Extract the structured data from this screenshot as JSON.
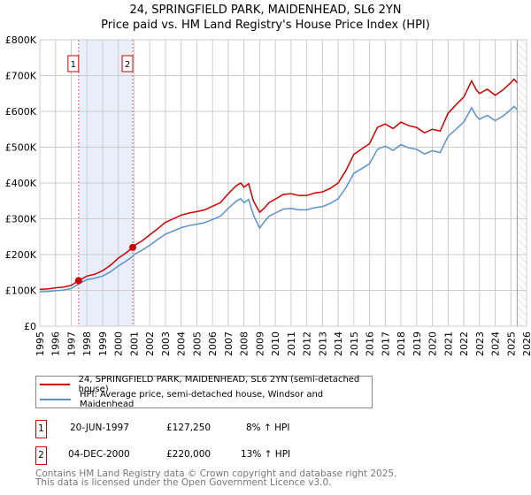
{
  "chart_data": {
    "type": "line",
    "title": "24, SPRINGFIELD PARK, MAIDENHEAD, SL6 2YN",
    "subtitle": "Price paid vs. HM Land Registry's House Price Index (HPI)",
    "xlim": [
      1995,
      2026
    ],
    "ylim": [
      0,
      800000
    ],
    "x_ticks": [
      "1995",
      "1996",
      "1997",
      "1998",
      "1999",
      "2000",
      "2001",
      "2002",
      "2003",
      "2004",
      "2005",
      "2006",
      "2007",
      "2008",
      "2009",
      "2010",
      "2011",
      "2012",
      "2013",
      "2014",
      "2015",
      "2016",
      "2017",
      "2018",
      "2019",
      "2020",
      "2021",
      "2022",
      "2023",
      "2024",
      "2025",
      "2026"
    ],
    "y_ticks": [
      {
        "v": 0,
        "label": "£0"
      },
      {
        "v": 100000,
        "label": "£100K"
      },
      {
        "v": 200000,
        "label": "£200K"
      },
      {
        "v": 300000,
        "label": "£300K"
      },
      {
        "v": 400000,
        "label": "£400K"
      },
      {
        "v": 500000,
        "label": "£500K"
      },
      {
        "v": 600000,
        "label": "£600K"
      },
      {
        "v": 700000,
        "label": "£700K"
      },
      {
        "v": 800000,
        "label": "£800K"
      }
    ],
    "grid": true,
    "shaded_range": [
      1997.47,
      2000.92
    ],
    "forecast_hatch_from": 2025.4,
    "series": [
      {
        "name": "24, SPRINGFIELD PARK, MAIDENHEAD, SL6 2YN (semi-detached house)",
        "color": "#cc0000",
        "x": [
          1995,
          1995.5,
          1996,
          1996.5,
          1997,
          1997.47,
          1998,
          1998.5,
          1999,
          1999.5,
          2000,
          2000.5,
          2000.92,
          2001,
          2001.5,
          2002,
          2002.5,
          2003,
          2003.5,
          2004,
          2004.5,
          2005,
          2005.5,
          2006,
          2006.5,
          2007,
          2007.5,
          2007.8,
          2008,
          2008.3,
          2008.6,
          2009,
          2009.3,
          2009.6,
          2010,
          2010.5,
          2011,
          2011.5,
          2012,
          2012.5,
          2013,
          2013.5,
          2014,
          2014.5,
          2015,
          2015.5,
          2016,
          2016.5,
          2017,
          2017.5,
          2018,
          2018.5,
          2019,
          2019.5,
          2020,
          2020.5,
          2021,
          2021.5,
          2022,
          2022.5,
          2022.8,
          2023,
          2023.5,
          2024,
          2024.5,
          2025,
          2025.2,
          2025.4
        ],
        "y": [
          103000,
          104000,
          107000,
          109000,
          114000,
          127250,
          140000,
          145000,
          155000,
          170000,
          190000,
          205000,
          220000,
          225000,
          238000,
          255000,
          272000,
          290000,
          300000,
          310000,
          316000,
          320000,
          325000,
          335000,
          345000,
          370000,
          392000,
          400000,
          388000,
          398000,
          350000,
          318000,
          330000,
          345000,
          355000,
          368000,
          370000,
          365000,
          365000,
          372000,
          375000,
          385000,
          400000,
          435000,
          480000,
          495000,
          510000,
          555000,
          565000,
          552000,
          570000,
          560000,
          555000,
          540000,
          550000,
          545000,
          595000,
          618000,
          640000,
          685000,
          660000,
          650000,
          662000,
          645000,
          660000,
          680000,
          690000,
          680000
        ]
      },
      {
        "name": "HPI: Average price, semi-detached house, Windsor and Maidenhead",
        "color": "#5b8fd1",
        "x": [
          1995,
          1995.5,
          1996,
          1996.5,
          1997,
          1997.47,
          1998,
          1998.5,
          1999,
          1999.5,
          2000,
          2000.5,
          2000.92,
          2001,
          2001.5,
          2002,
          2002.5,
          2003,
          2003.5,
          2004,
          2004.5,
          2005,
          2005.5,
          2006,
          2006.5,
          2007,
          2007.5,
          2007.8,
          2008,
          2008.3,
          2008.6,
          2009,
          2009.3,
          2009.6,
          2010,
          2010.5,
          2011,
          2011.5,
          2012,
          2012.5,
          2013,
          2013.5,
          2014,
          2014.5,
          2015,
          2015.5,
          2016,
          2016.5,
          2017,
          2017.5,
          2018,
          2018.5,
          2019,
          2019.5,
          2020,
          2020.5,
          2021,
          2021.5,
          2022,
          2022.5,
          2022.8,
          2023,
          2023.5,
          2024,
          2024.5,
          2025,
          2025.2,
          2025.4
        ],
        "y": [
          96000,
          97000,
          99000,
          101000,
          105000,
          118000,
          130000,
          134000,
          140000,
          152000,
          168000,
          182000,
          195000,
          200000,
          212000,
          226000,
          242000,
          257000,
          266000,
          275000,
          281000,
          285000,
          289000,
          298000,
          307000,
          329000,
          349000,
          356000,
          345000,
          354000,
          311000,
          274000,
          292000,
          307000,
          316000,
          327000,
          329000,
          325000,
          325000,
          331000,
          334000,
          343000,
          356000,
          387000,
          427000,
          440000,
          454000,
          494000,
          503000,
          491000,
          507000,
          498000,
          494000,
          481000,
          490000,
          485000,
          530000,
          550000,
          570000,
          610000,
          587000,
          578000,
          589000,
          574000,
          587000,
          605000,
          614000,
          605000
        ]
      }
    ],
    "markers": [
      {
        "label": "1",
        "x": 1997.47,
        "y": 127250
      },
      {
        "label": "2",
        "x": 2000.92,
        "y": 220000
      }
    ]
  },
  "legend": {
    "red": "24, SPRINGFIELD PARK, MAIDENHEAD, SL6 2YN (semi-detached house)",
    "blue": "HPI: Average price, semi-detached house, Windsor and Maidenhead"
  },
  "transactions": [
    {
      "num": "1",
      "date": "20-JUN-1997",
      "price": "£127,250",
      "hpi": "8% ↑ HPI"
    },
    {
      "num": "2",
      "date": "04-DEC-2000",
      "price": "£220,000",
      "hpi": "13% ↑ HPI"
    }
  ],
  "footer": {
    "line1": "Contains HM Land Registry data © Crown copyright and database right 2025.",
    "line2": "This data is licensed under the Open Government Licence v3.0."
  }
}
